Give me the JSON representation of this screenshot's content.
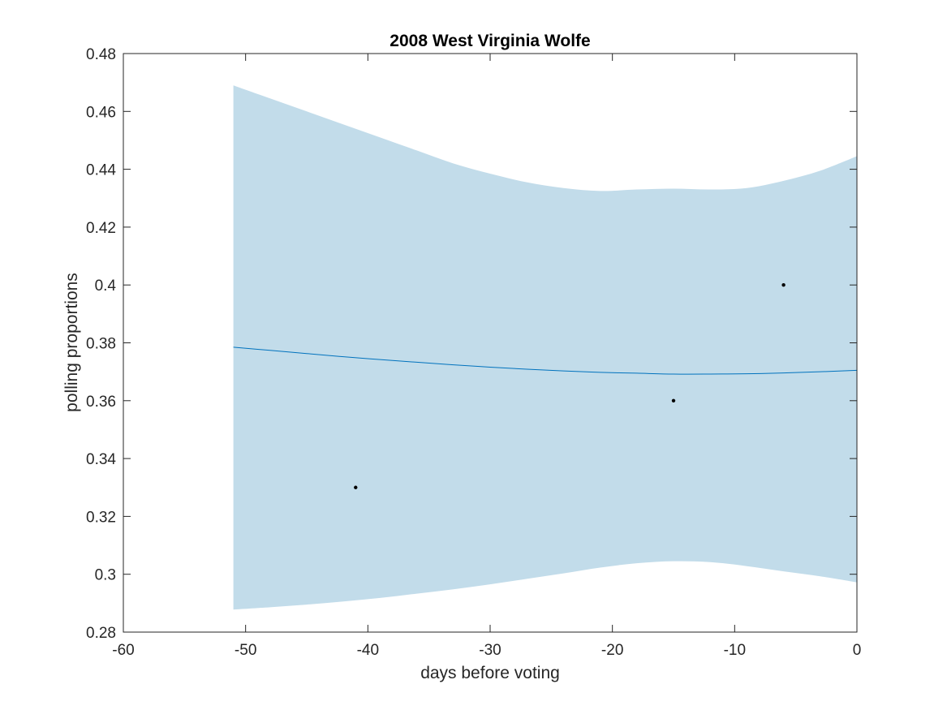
{
  "chart_data": {
    "type": "line",
    "title": "2008 West Virginia Wolfe",
    "xlabel": "days before voting",
    "ylabel": "polling proportions",
    "xlim": [
      -60,
      0
    ],
    "ylim": [
      0.28,
      0.48
    ],
    "xticks": [
      -60,
      -50,
      -40,
      -30,
      -20,
      -10,
      0
    ],
    "xtick_labels": [
      "-60",
      "-50",
      "-40",
      "-30",
      "-20",
      "-10",
      "0"
    ],
    "yticks": [
      0.28,
      0.3,
      0.32,
      0.34,
      0.36,
      0.38,
      0.4,
      0.42,
      0.44,
      0.46,
      0.48
    ],
    "ytick_labels": [
      "0.28",
      "0.3",
      "0.32",
      "0.34",
      "0.36",
      "0.38",
      "0.4",
      "0.42",
      "0.44",
      "0.46",
      "0.48"
    ],
    "grid": false,
    "colors": {
      "band": "#c2dcea",
      "line": "#0072bd",
      "points": "#000000",
      "axes": "#262626"
    },
    "band": {
      "x": [
        -51,
        -48,
        -45,
        -42,
        -39,
        -36,
        -33,
        -30,
        -27,
        -24,
        -21,
        -18,
        -15,
        -12,
        -9,
        -6,
        -3,
        0
      ],
      "upper": [
        0.469,
        0.4645,
        0.46,
        0.4555,
        0.451,
        0.4465,
        0.442,
        0.4385,
        0.4355,
        0.4335,
        0.4325,
        0.433,
        0.4333,
        0.433,
        0.4335,
        0.436,
        0.4395,
        0.4445
      ],
      "lower": [
        0.2878,
        0.2886,
        0.2895,
        0.2906,
        0.2918,
        0.2933,
        0.2948,
        0.2965,
        0.2984,
        0.3003,
        0.3023,
        0.3038,
        0.3045,
        0.3042,
        0.3028,
        0.301,
        0.2993,
        0.2972
      ]
    },
    "series": [
      {
        "type": "line",
        "x": [
          -51,
          -48,
          -45,
          -42,
          -39,
          -36,
          -33,
          -30,
          -27,
          -24,
          -21,
          -18,
          -15,
          -12,
          -9,
          -6,
          -3,
          0
        ],
        "values": [
          0.3785,
          0.3774,
          0.3763,
          0.3752,
          0.3742,
          0.3733,
          0.3724,
          0.3716,
          0.3709,
          0.3703,
          0.3698,
          0.3695,
          0.3692,
          0.3692,
          0.3693,
          0.3696,
          0.37,
          0.3705
        ]
      },
      {
        "type": "scatter",
        "x": [
          -41,
          -15,
          -6
        ],
        "values": [
          0.33,
          0.36,
          0.4
        ]
      }
    ]
  }
}
